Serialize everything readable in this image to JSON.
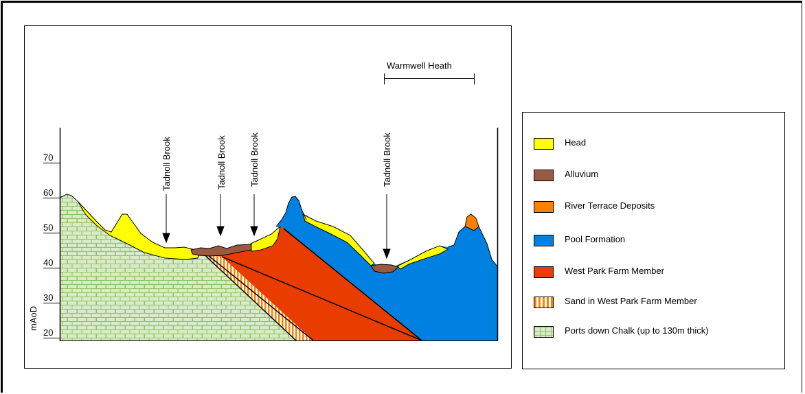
{
  "diagram": {
    "y_axis": {
      "label": "mAoD",
      "ticks": [
        "70",
        "60",
        "50",
        "40",
        "30",
        "20"
      ]
    },
    "brook_labels": [
      "Tadnoll Brook",
      "Tadnoll Brook",
      "Tadnoll Brook",
      "Tadnoll Brook"
    ],
    "heath_label": "Warmwell Heath"
  },
  "legend": {
    "items": [
      {
        "id": "head",
        "label": "Head",
        "color": "#ffff00"
      },
      {
        "id": "alluvium",
        "label": "Alluvium",
        "color": "#9a5a40"
      },
      {
        "id": "river-terrace-deposits",
        "label": "River Terrace Deposits",
        "color": "#ff8000"
      },
      {
        "id": "pool-formation",
        "label": "Pool Formation",
        "color": "#0080e0"
      },
      {
        "id": "west-park-farm-member",
        "label": "West Park Farm Member",
        "color": "#e83c00"
      },
      {
        "id": "sand-west-park-farm",
        "label": "Sand in West Park Farm Member",
        "color": "#ff8000",
        "pattern": "vertical-stripes"
      },
      {
        "id": "portsdown-chalk",
        "label": "Ports down Chalk (up to 130m thick)",
        "color": "#d4e8c0",
        "pattern": "brick"
      }
    ]
  }
}
